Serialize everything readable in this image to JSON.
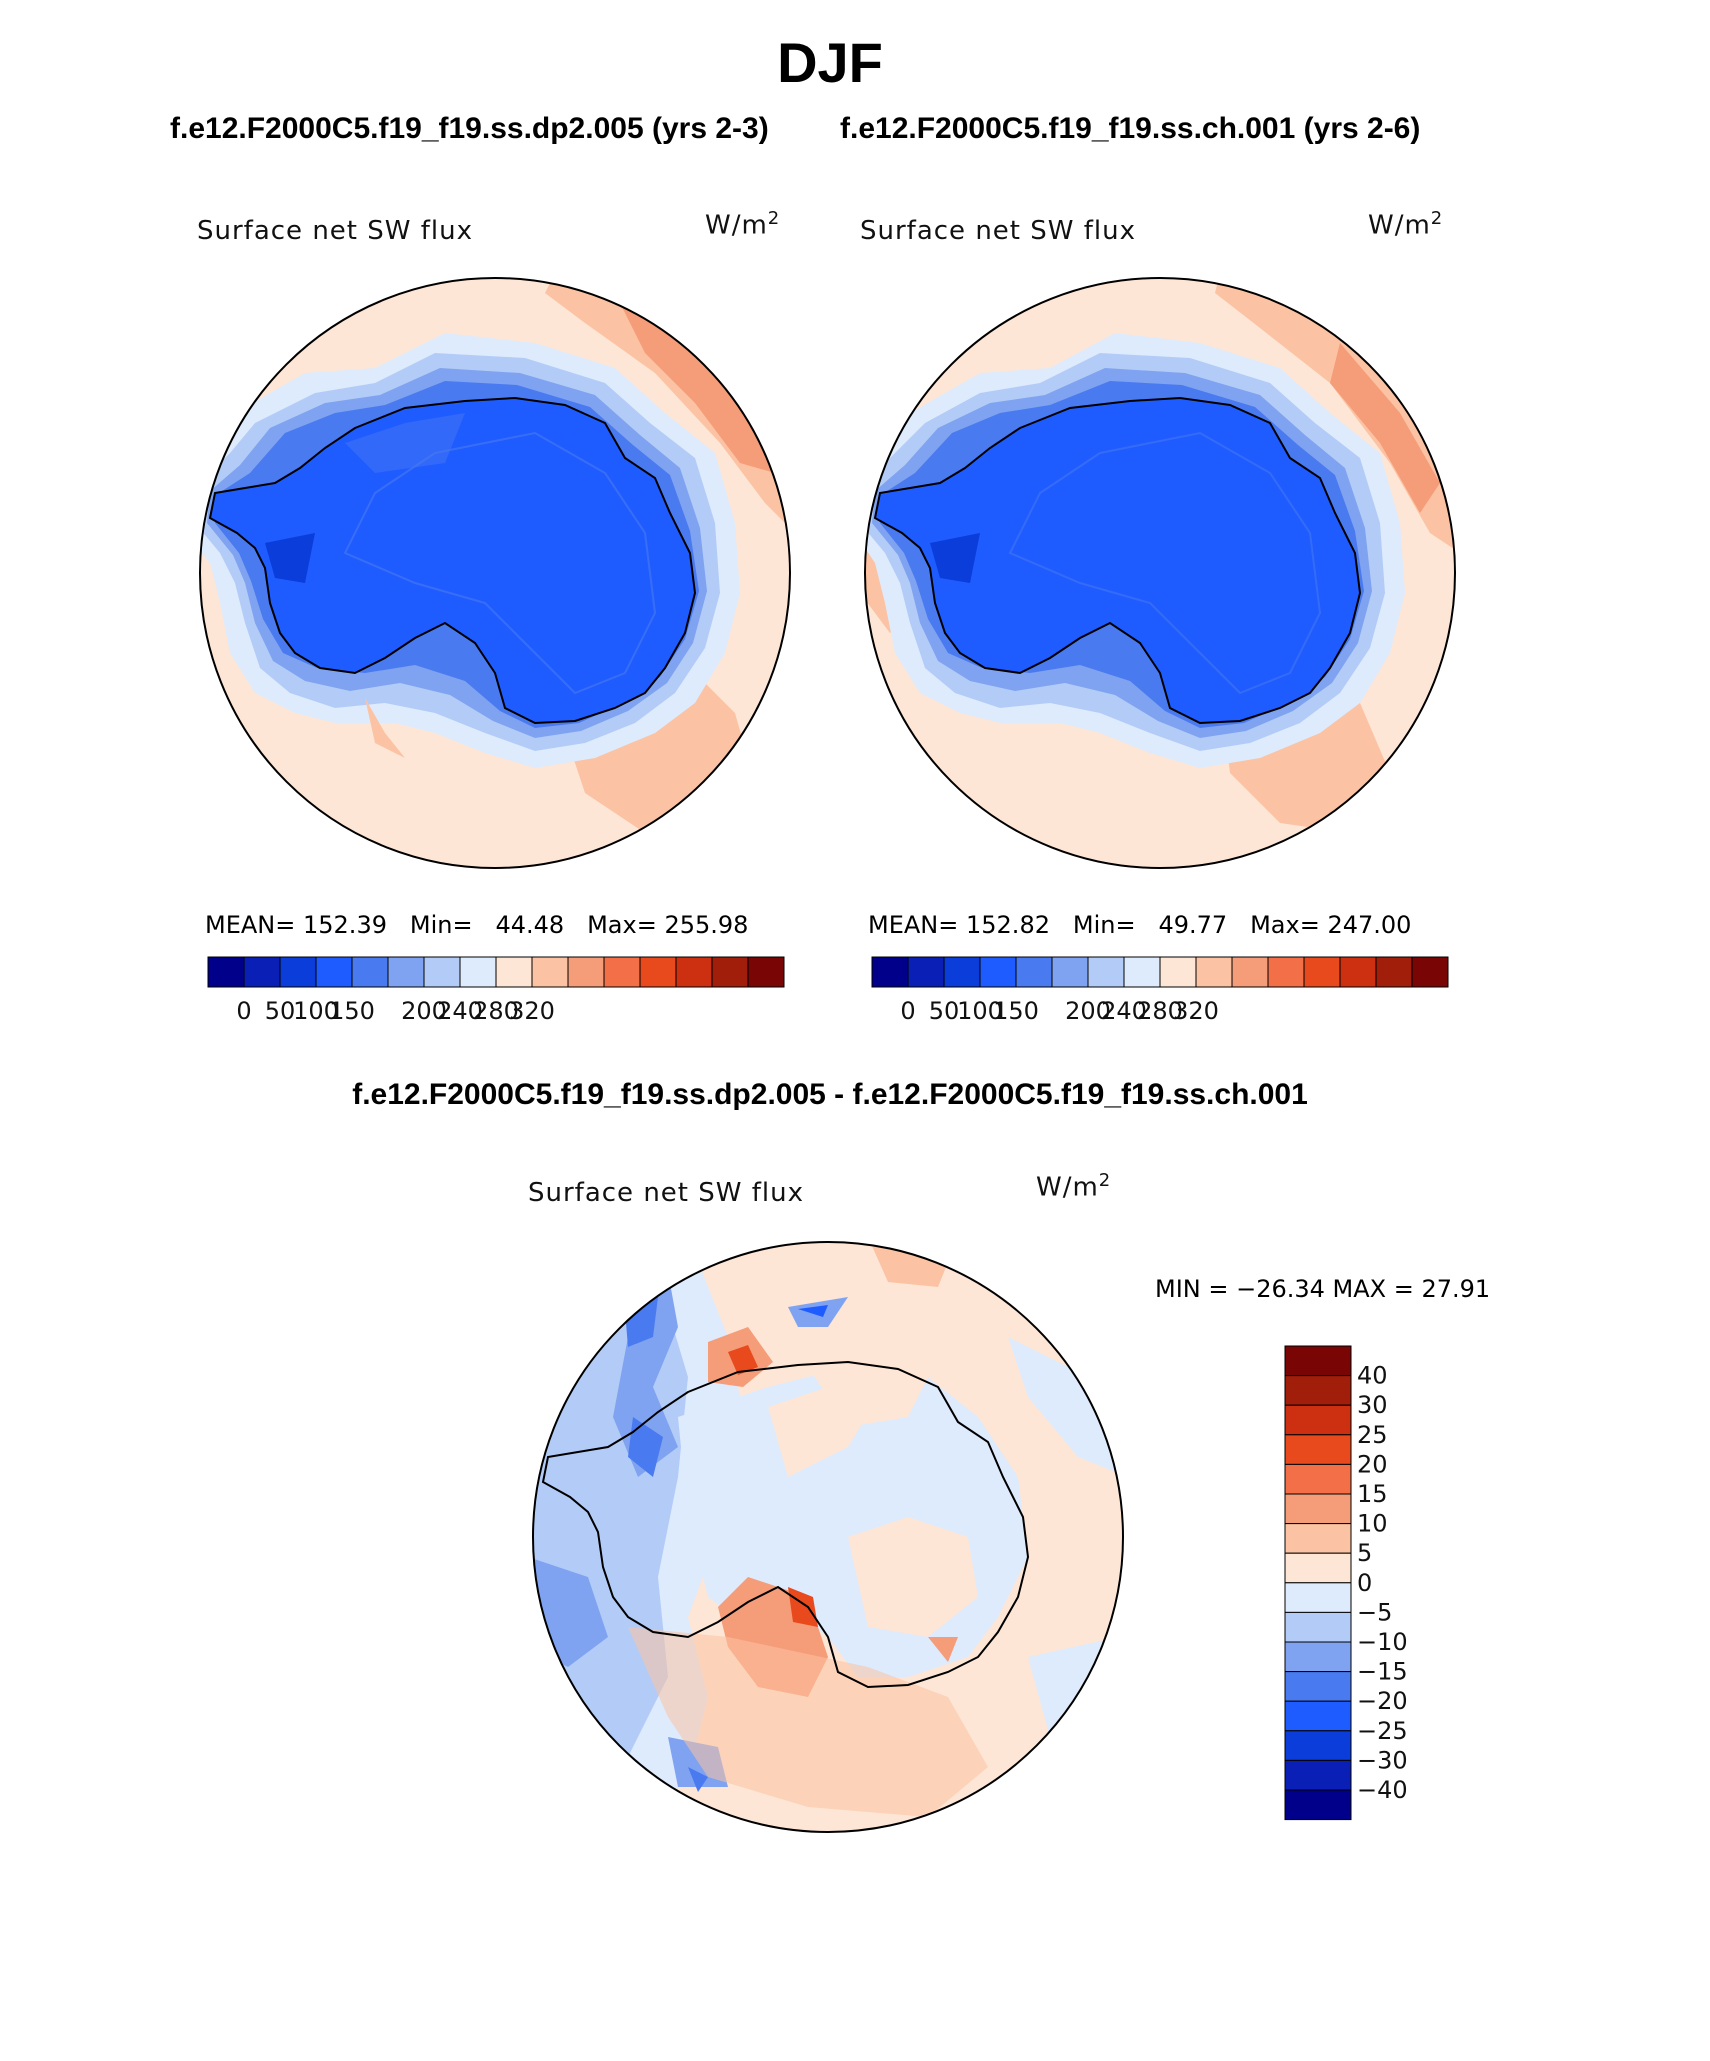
{
  "title": "DJF",
  "run_titles": {
    "left": "f.e12.F2000C5.f19_f19.ss.dp2.005 (yrs 2-3)",
    "right": "f.e12.F2000C5.f19_f19.ss.ch.001 (yrs 2-6)"
  },
  "difference_title": "f.e12.F2000C5.f19_f19.ss.dp2.005 - f.e12.F2000C5.f19_f19.ss.ch.001",
  "panels": [
    {
      "variable": "Surface net SW flux",
      "units": "W/m",
      "units_sup": "2",
      "mean_label": "MEAN=",
      "mean": "152.39",
      "min_label": "Min=",
      "min": "44.48",
      "max_label": "Max=",
      "max": "255.98"
    },
    {
      "variable": "Surface net SW flux",
      "units": "W/m",
      "units_sup": "2",
      "mean_label": "MEAN=",
      "mean": "152.82",
      "min_label": "Min=",
      "min": "49.77",
      "max_label": "Max=",
      "max": "247.00"
    }
  ],
  "diff_panel": {
    "variable": "Surface net SW flux",
    "units": "W/m",
    "units_sup": "2",
    "stats": "MIN = −26.34 MAX =   27.91"
  },
  "colorbar_abs": {
    "colors": [
      "#00008b",
      "#0a1fb5",
      "#0a3dd9",
      "#1f5cff",
      "#4a7af0",
      "#7fa3f0",
      "#b3ccf7",
      "#deebfc",
      "#fde6d6",
      "#fbc3a3",
      "#f59c79",
      "#f26f47",
      "#e84a1e",
      "#cc3010",
      "#a11e0a",
      "#7a0505"
    ],
    "labels": [
      "0",
      "50",
      "100",
      "150",
      "200",
      "240",
      "280",
      "320"
    ]
  },
  "colorbar_diff": {
    "colors": [
      "#7a0505",
      "#a11e0a",
      "#cc3010",
      "#e84a1e",
      "#f26f47",
      "#f59c79",
      "#fbc3a3",
      "#fde6d6",
      "#deebfc",
      "#b3ccf7",
      "#7fa3f0",
      "#4a7af0",
      "#1f5cff",
      "#0a3dd9",
      "#0a1fb5",
      "#00008b"
    ],
    "labels": [
      "40",
      "30",
      "25",
      "20",
      "15",
      "10",
      "5",
      "0",
      "−5",
      "−10",
      "−15",
      "−20",
      "−25",
      "−30",
      "−40"
    ]
  }
}
